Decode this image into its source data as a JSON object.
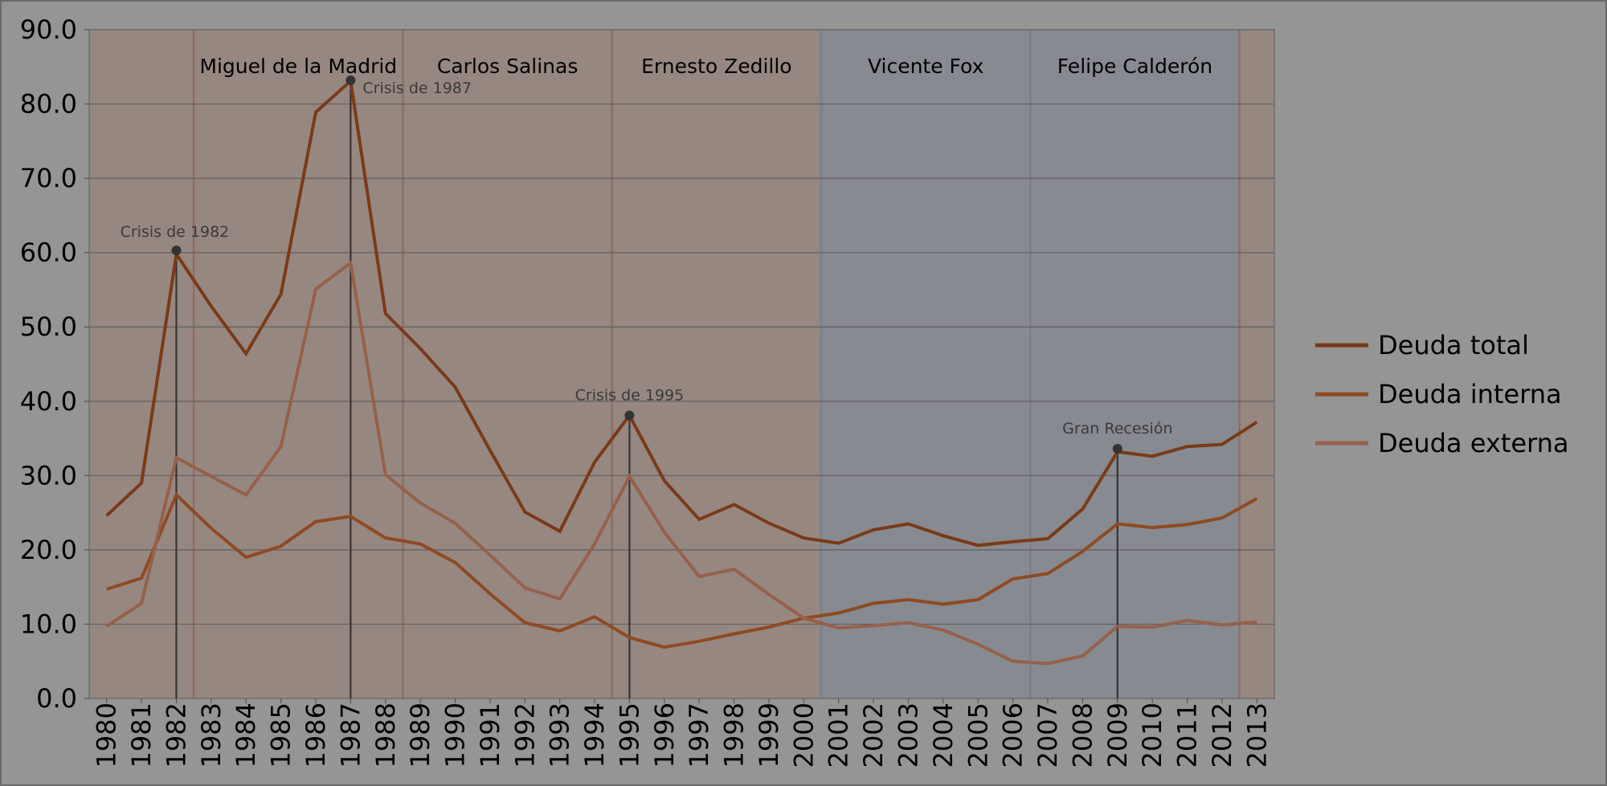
{
  "chart_data": {
    "type": "line",
    "title": "",
    "xlabel": "",
    "ylabel": "",
    "x": [
      1980,
      1981,
      1982,
      1983,
      1984,
      1985,
      1986,
      1987,
      1988,
      1989,
      1990,
      1991,
      1992,
      1993,
      1994,
      1995,
      1996,
      1997,
      1998,
      1999,
      2000,
      2001,
      2002,
      2003,
      2004,
      2005,
      2006,
      2007,
      2008,
      2009,
      2010,
      2011,
      2012,
      2013
    ],
    "xlim": [
      1979.5,
      2013.5
    ],
    "ylim": [
      0,
      90
    ],
    "yticks": [
      "0.0",
      "10.0",
      "20.0",
      "30.0",
      "40.0",
      "50.0",
      "60.0",
      "70.0",
      "80.0",
      "90.0"
    ],
    "xticks": [
      "1980",
      "1981",
      "1982",
      "1983",
      "1984",
      "1985",
      "1986",
      "1987",
      "1988",
      "1989",
      "1990",
      "1991",
      "1992",
      "1993",
      "1994",
      "1995",
      "1996",
      "1997",
      "1998",
      "1999",
      "2000",
      "2001",
      "2002",
      "2003",
      "2004",
      "2005",
      "2006",
      "2007",
      "2008",
      "2009",
      "2010",
      "2011",
      "2012",
      "2013"
    ],
    "grid": "horizontal",
    "legend_position": "right",
    "series": [
      {
        "name": "Deuda total",
        "color": "#7a3a18",
        "values": [
          24.6,
          29.0,
          59.8,
          52.8,
          46.4,
          54.4,
          78.9,
          83.1,
          51.8,
          47.1,
          41.9,
          33.4,
          25.1,
          22.5,
          31.8,
          38.1,
          29.3,
          24.1,
          26.1,
          23.6,
          21.6,
          20.9,
          22.7,
          23.5,
          21.9,
          20.6,
          21.1,
          21.5,
          25.5,
          33.2,
          32.6,
          33.9,
          34.2,
          37.2
        ]
      },
      {
        "name": "Deuda interna",
        "color": "#8f4a22",
        "values": [
          14.7,
          16.2,
          27.4,
          22.9,
          19.0,
          20.5,
          23.8,
          24.5,
          21.6,
          20.8,
          18.3,
          14.1,
          10.2,
          9.1,
          11.0,
          8.2,
          6.9,
          7.7,
          8.7,
          9.6,
          10.8,
          11.5,
          12.8,
          13.3,
          12.7,
          13.3,
          16.1,
          16.8,
          19.8,
          23.5,
          23.0,
          23.4,
          24.3,
          26.9
        ]
      },
      {
        "name": "Deuda externa",
        "color": "#96604a",
        "values": [
          9.7,
          12.8,
          32.4,
          29.9,
          27.4,
          33.9,
          55.1,
          58.6,
          30.1,
          26.3,
          23.6,
          19.3,
          14.9,
          13.4,
          20.8,
          29.9,
          22.4,
          16.4,
          17.4,
          14.0,
          10.8,
          9.5,
          9.8,
          10.2,
          9.2,
          7.3,
          5.0,
          4.7,
          5.7,
          9.7,
          9.6,
          10.5,
          9.9,
          10.3
        ]
      }
    ],
    "periods": [
      {
        "label": "",
        "start": 1979.5,
        "end": 1982.5,
        "color": "#978781"
      },
      {
        "label": "Miguel de la Madrid",
        "start": 1982.5,
        "end": 1988.5,
        "color": "#978781"
      },
      {
        "label": "Carlos Salinas",
        "start": 1988.5,
        "end": 1994.5,
        "color": "#978781"
      },
      {
        "label": "Ernesto Zedillo",
        "start": 1994.5,
        "end": 2000.5,
        "color": "#978781"
      },
      {
        "label": "Vicente Fox",
        "start": 2000.5,
        "end": 2006.5,
        "color": "#878a91"
      },
      {
        "label": "Felipe Calderón",
        "start": 2006.5,
        "end": 2012.5,
        "color": "#878a91"
      },
      {
        "label": "",
        "start": 2012.5,
        "end": 2013.5,
        "color": "#978781"
      }
    ],
    "annotations": [
      {
        "label": "Crisis de 1982",
        "x": 1982,
        "y": 60.3
      },
      {
        "label": "Crisis de 1987",
        "x": 1987,
        "y": 83.2
      },
      {
        "label": "Crisis de 1995",
        "x": 1995,
        "y": 38.1
      },
      {
        "label": "Gran Recesión",
        "x": 2009,
        "y": 33.6
      }
    ]
  }
}
